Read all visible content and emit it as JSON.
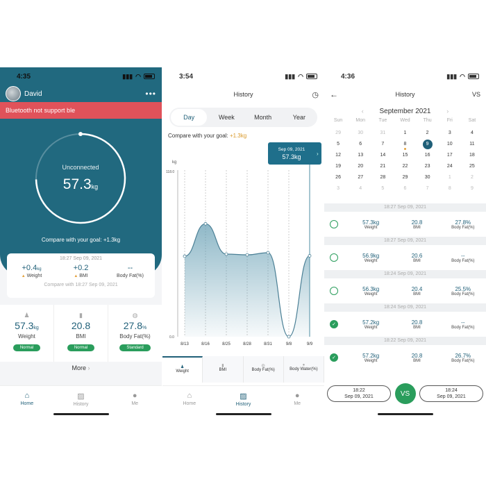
{
  "home": {
    "time": "4:35",
    "user_name": "David",
    "bluetooth_message": "Bluetooth not support ble",
    "ring_status": "Unconnected",
    "ring_value": "57.3",
    "ring_unit": "kg",
    "goal_text": "Compare with your goal: +1.3kg",
    "summary": {
      "timestamp": "18:27 Sep 09, 2021",
      "items": [
        {
          "value": "+0.4",
          "unit": "kg",
          "label": "Weight"
        },
        {
          "value": "+0.2",
          "unit": "",
          "label": "BMI"
        },
        {
          "value": "--",
          "unit": "",
          "label": "Body Fat(%)"
        }
      ],
      "compare_text": "Compare with 18:27 Sep 09, 2021"
    },
    "metrics": [
      {
        "value": "57.3",
        "unit": "kg",
        "label": "Weight",
        "badge": "Normal"
      },
      {
        "value": "20.8",
        "unit": "",
        "label": "BMI",
        "badge": "Normal"
      },
      {
        "value": "27.8",
        "unit": "%",
        "label": "Body Fat(%)",
        "badge": "Standard"
      }
    ],
    "more_label": "More",
    "tabs": [
      "Home",
      "History",
      "Me"
    ]
  },
  "history": {
    "time": "3:54",
    "title": "History",
    "segments": [
      "Day",
      "Week",
      "Month",
      "Year"
    ],
    "goal_prefix": "Compare with your goal: ",
    "goal_value": "+1.3kg",
    "tooltip_date": "Sep 09, 2021",
    "tooltip_value": "57.3kg",
    "subtabs": [
      "Weight",
      "BMI",
      "Body Fat(%)",
      "Body Water(%)"
    ],
    "tabs": [
      "Home",
      "History",
      "Me"
    ]
  },
  "chart_data": {
    "type": "area",
    "ylabel": "kg",
    "ylim": [
      0.0,
      118.0
    ],
    "y_ticks": [
      "118.0",
      "0.0"
    ],
    "categories": [
      "8/13",
      "8/16",
      "8/25",
      "8/28",
      "8/31",
      "9/8",
      "9/9"
    ],
    "values": [
      57.0,
      80.0,
      58.5,
      58.0,
      59.5,
      0.0,
      57.3
    ]
  },
  "compare": {
    "time": "4:36",
    "title": "History",
    "vs_label": "VS",
    "month_title": "September 2021",
    "weekdays": [
      "Sun",
      "Mon",
      "Tue",
      "Wed",
      "Thu",
      "Fri",
      "Sat"
    ],
    "weeks": [
      [
        "29",
        "30",
        "31",
        "1",
        "2",
        "3",
        "4"
      ],
      [
        "5",
        "6",
        "7",
        "8",
        "9",
        "10",
        "11"
      ],
      [
        "12",
        "13",
        "14",
        "15",
        "16",
        "17",
        "18"
      ],
      [
        "19",
        "20",
        "21",
        "22",
        "23",
        "24",
        "25"
      ],
      [
        "26",
        "27",
        "28",
        "29",
        "30",
        "1",
        "2"
      ],
      [
        "3",
        "4",
        "5",
        "6",
        "7",
        "8",
        "9"
      ]
    ],
    "records": [
      {
        "time": "18:27 Sep 09, 2021",
        "weight": "57.3kg",
        "bmi": "20.8",
        "fat": "27.8%",
        "checked": false
      },
      {
        "time": "18:27 Sep 09, 2021",
        "weight": "56.9kg",
        "bmi": "20.6",
        "fat": "--",
        "checked": false
      },
      {
        "time": "18:24 Sep 09, 2021",
        "weight": "56.3kg",
        "bmi": "20.4",
        "fat": "25.5%",
        "checked": false
      },
      {
        "time": "18:24 Sep 09, 2021",
        "weight": "57.2kg",
        "bmi": "20.8",
        "fat": "--",
        "checked": true
      },
      {
        "time": "18:22 Sep 09, 2021",
        "weight": "57.2kg",
        "bmi": "20.8",
        "fat": "26.7%",
        "checked": true
      }
    ],
    "labels": {
      "weight": "Weight",
      "bmi": "BMI",
      "fat": "Body Fat(%)"
    },
    "compare_left": {
      "time": "18:22",
      "date": "Sep 09, 2021"
    },
    "compare_right": {
      "time": "18:24",
      "date": "Sep 09, 2021"
    },
    "compare_btn": "VS"
  }
}
